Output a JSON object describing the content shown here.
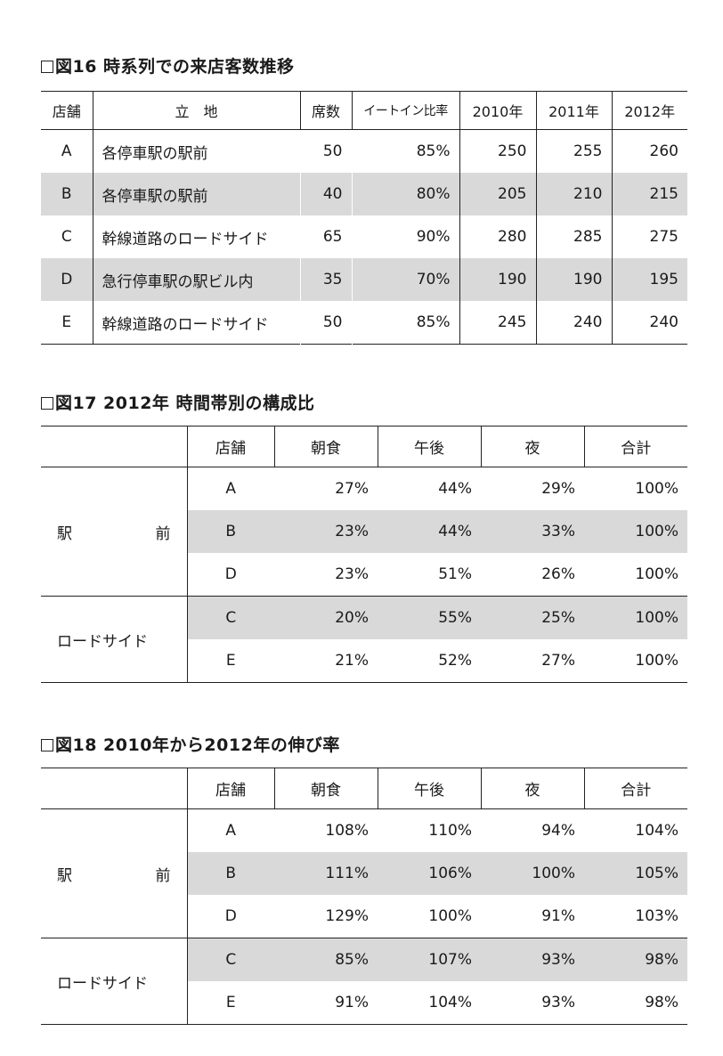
{
  "fig16": {
    "title": "図16 時系列での来店客数推移",
    "headers": [
      "店舗",
      "立　地",
      "席数",
      "イートイン比率",
      "2010年",
      "2011年",
      "2012年"
    ],
    "rows": [
      {
        "store": "A",
        "location": "各停車駅の駅前",
        "seats": "50",
        "ratio": "85%",
        "y2010": "250",
        "y2011": "255",
        "y2012": "260"
      },
      {
        "store": "B",
        "location": "各停車駅の駅前",
        "seats": "40",
        "ratio": "80%",
        "y2010": "205",
        "y2011": "210",
        "y2012": "215"
      },
      {
        "store": "C",
        "location": "幹線道路のロードサイド",
        "seats": "65",
        "ratio": "90%",
        "y2010": "280",
        "y2011": "285",
        "y2012": "275"
      },
      {
        "store": "D",
        "location": "急行停車駅の駅ビル内",
        "seats": "35",
        "ratio": "70%",
        "y2010": "190",
        "y2011": "190",
        "y2012": "195"
      },
      {
        "store": "E",
        "location": "幹線道路のロードサイド",
        "seats": "50",
        "ratio": "85%",
        "y2010": "245",
        "y2011": "240",
        "y2012": "240"
      }
    ]
  },
  "fig17": {
    "title": "図17 2012年 時間帯別の構成比",
    "headers": [
      "",
      "店舗",
      "朝食",
      "午後",
      "夜",
      "合計"
    ],
    "group_station_a": "駅",
    "group_station_b": "前",
    "group_roadside": "ロードサイド",
    "rows": [
      {
        "store": "A",
        "breakfast": "27%",
        "afternoon": "44%",
        "night": "29%",
        "total": "100%"
      },
      {
        "store": "B",
        "breakfast": "23%",
        "afternoon": "44%",
        "night": "33%",
        "total": "100%"
      },
      {
        "store": "D",
        "breakfast": "23%",
        "afternoon": "51%",
        "night": "26%",
        "total": "100%"
      },
      {
        "store": "C",
        "breakfast": "20%",
        "afternoon": "55%",
        "night": "25%",
        "total": "100%"
      },
      {
        "store": "E",
        "breakfast": "21%",
        "afternoon": "52%",
        "night": "27%",
        "total": "100%"
      }
    ]
  },
  "fig18": {
    "title": "図18 2010年から2012年の伸び率",
    "headers": [
      "",
      "店舗",
      "朝食",
      "午後",
      "夜",
      "合計"
    ],
    "group_station_a": "駅",
    "group_station_b": "前",
    "group_roadside": "ロードサイド",
    "rows": [
      {
        "store": "A",
        "breakfast": "108%",
        "afternoon": "110%",
        "night": "94%",
        "total": "104%"
      },
      {
        "store": "B",
        "breakfast": "111%",
        "afternoon": "106%",
        "night": "100%",
        "total": "105%"
      },
      {
        "store": "D",
        "breakfast": "129%",
        "afternoon": "100%",
        "night": "91%",
        "total": "103%"
      },
      {
        "store": "C",
        "breakfast": "85%",
        "afternoon": "107%",
        "night": "93%",
        "total": "98%"
      },
      {
        "store": "E",
        "breakfast": "91%",
        "afternoon": "104%",
        "night": "93%",
        "total": "98%"
      }
    ]
  }
}
